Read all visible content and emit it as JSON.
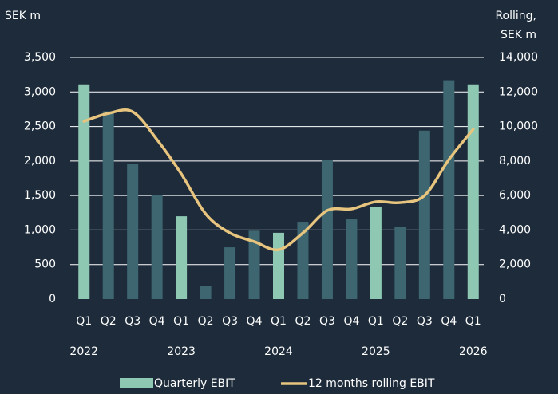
{
  "chart_data": {
    "type": "bar-line",
    "ylabel": "SEK m",
    "y2label": [
      "Rolling,",
      "SEK m"
    ],
    "categories": [
      "Q1",
      "Q2",
      "Q3",
      "Q4",
      "Q1",
      "Q2",
      "Q3",
      "Q4",
      "Q1",
      "Q2",
      "Q3",
      "Q4",
      "Q1",
      "Q2",
      "Q3",
      "Q4",
      "Q1"
    ],
    "years": [
      "2022",
      null,
      null,
      null,
      "2023",
      null,
      null,
      null,
      "2024",
      null,
      null,
      null,
      "2025",
      null,
      null,
      null,
      "2026"
    ],
    "series": [
      {
        "name": "Quarterly EBIT",
        "type": "bar",
        "color": "#8ec8b3",
        "colors": [
          "#8ec8b3",
          "#3d6671",
          "#3d6671",
          "#3d6671",
          "#8ec8b3",
          "#3d6671",
          "#3d6671",
          "#3d6671",
          "#8ec8b3",
          "#3d6671",
          "#3d6671",
          "#3d6671",
          "#8ec8b3",
          "#3d6671",
          "#3d6671",
          "#3d6671",
          "#8ec8b3"
        ],
        "values": [
          3110,
          2720,
          1960,
          1510,
          1200,
          185,
          750,
          990,
          960,
          1120,
          2020,
          1155,
          1340,
          1040,
          2440,
          3170,
          3110
        ]
      },
      {
        "name": "12 months rolling EBIT",
        "type": "line",
        "axis": "y2",
        "color": "#e8c57e",
        "values": [
          10300,
          10760,
          10850,
          9240,
          7250,
          4940,
          3830,
          3330,
          2860,
          3830,
          5130,
          5220,
          5640,
          5590,
          6000,
          8080,
          9840
        ]
      }
    ],
    "ylim": [
      0,
      3500
    ],
    "yticks": [
      0,
      500,
      {
        "value": 1000,
        "label": "1,000"
      },
      {
        "value": 1500,
        "label": "1,500"
      },
      {
        "value": 2000,
        "label": "2,000"
      },
      {
        "value": 2500,
        "label": "2,500"
      },
      {
        "value": 3000,
        "label": "3,000"
      },
      {
        "value": 3500,
        "label": "3,500"
      }
    ],
    "y2lim": [
      0,
      14000
    ],
    "y2ticks": [
      0,
      {
        "value": 2000,
        "label": "2,000"
      },
      {
        "value": 4000,
        "label": "4,000"
      },
      {
        "value": 6000,
        "label": "6,000"
      },
      {
        "value": 8000,
        "label": "8,000"
      },
      {
        "value": 10000,
        "label": "10,000"
      },
      {
        "value": 12000,
        "label": "12,000"
      },
      {
        "value": 14000,
        "label": "14,000"
      }
    ],
    "grid": true
  }
}
